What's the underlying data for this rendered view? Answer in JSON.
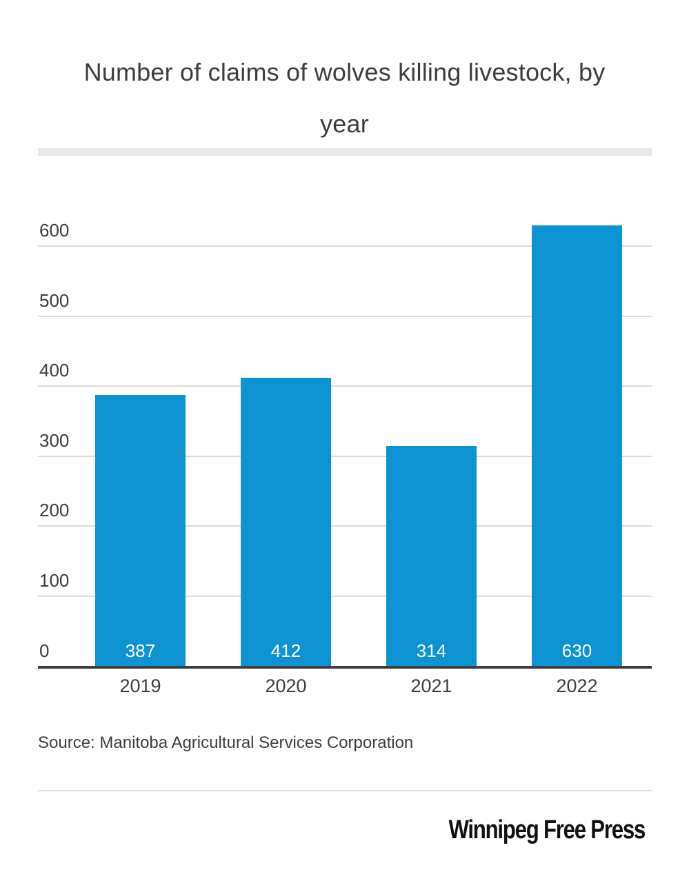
{
  "page": {
    "title_full": "Number of claims of wolves killing livestock, by year",
    "title_lines": [
      "Number of claims of wolves killing livestock, by",
      "year"
    ],
    "source_text": "Source: Manitoba Agricultural Services Corporation",
    "publisher_logo_text": "Winnipeg Free Press"
  },
  "colors": {
    "bar": "#0e93d2",
    "axis_line": "#3d3d3d",
    "gridline": "#dcdcdc",
    "title_text": "#3d3d3d",
    "tick_text": "#3d3d3d",
    "value_label_text": "#ffffff",
    "divider": "#e8e8e8",
    "footer_divider": "#dddddd",
    "logo_text": "#111111"
  },
  "chart_data": {
    "type": "bar",
    "title": "Number of claims of wolves killing livestock, by year",
    "categories": [
      "2019",
      "2020",
      "2021",
      "2022"
    ],
    "values": [
      387,
      412,
      314,
      630
    ],
    "value_labels": [
      "387",
      "412",
      "314",
      "630"
    ],
    "xlabel": "",
    "ylabel": "",
    "ylim": [
      0,
      650
    ],
    "yticks": [
      0,
      100,
      200,
      300,
      400,
      500,
      600
    ],
    "grid": true,
    "legend": "none",
    "bar_color": "#0e93d2",
    "value_label_position": "inside-bottom",
    "source": "Source: Manitoba Agricultural Services Corporation",
    "publisher": "Winnipeg Free Press"
  }
}
